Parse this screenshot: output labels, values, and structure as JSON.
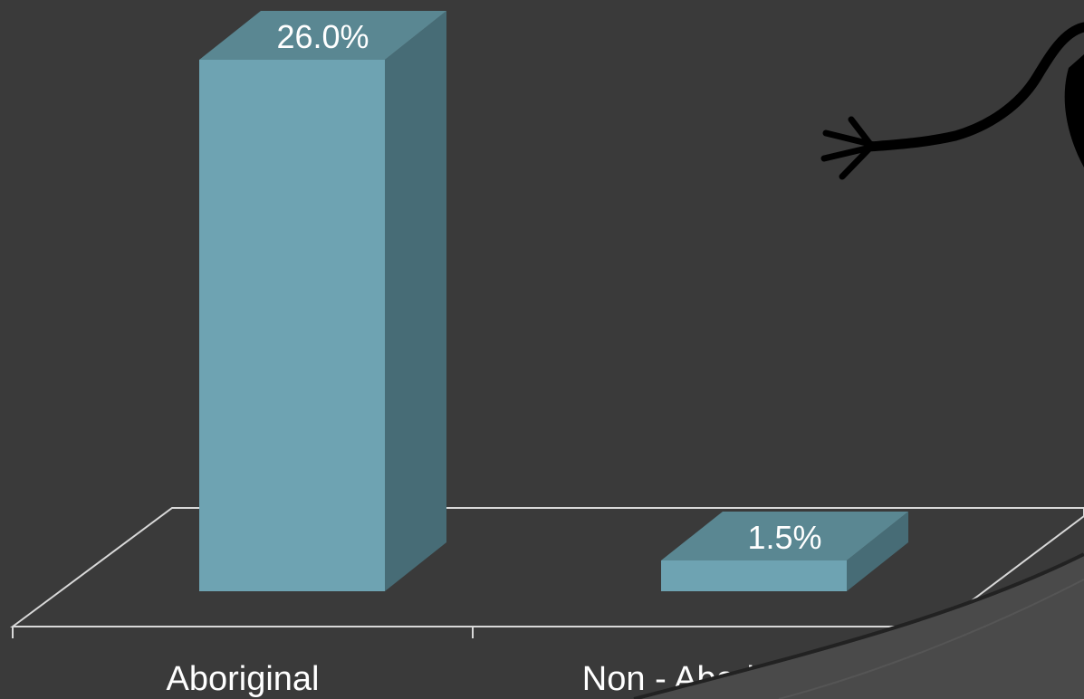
{
  "chart_data": {
    "type": "bar",
    "style": "3d",
    "categories": [
      "Aboriginal",
      "Non - Aboriginal"
    ],
    "values": [
      26.0,
      1.5
    ],
    "data_labels": [
      "26.0%",
      "1.5%"
    ],
    "value_unit": "%",
    "title": "",
    "xlabel": "",
    "ylabel": "",
    "ylim": [
      0,
      26.0
    ],
    "grid": false,
    "legend": "none"
  },
  "colors": {
    "background": "#3a3a3a",
    "bar_front": "#6ea3b2",
    "bar_top": "#5a8792",
    "bar_side": "#476c76",
    "floor_line": "#d8d8d8",
    "text": "#ffffff",
    "decoration": "#000000"
  },
  "decoration": {
    "icon": "stick-figure-hand-icon"
  }
}
